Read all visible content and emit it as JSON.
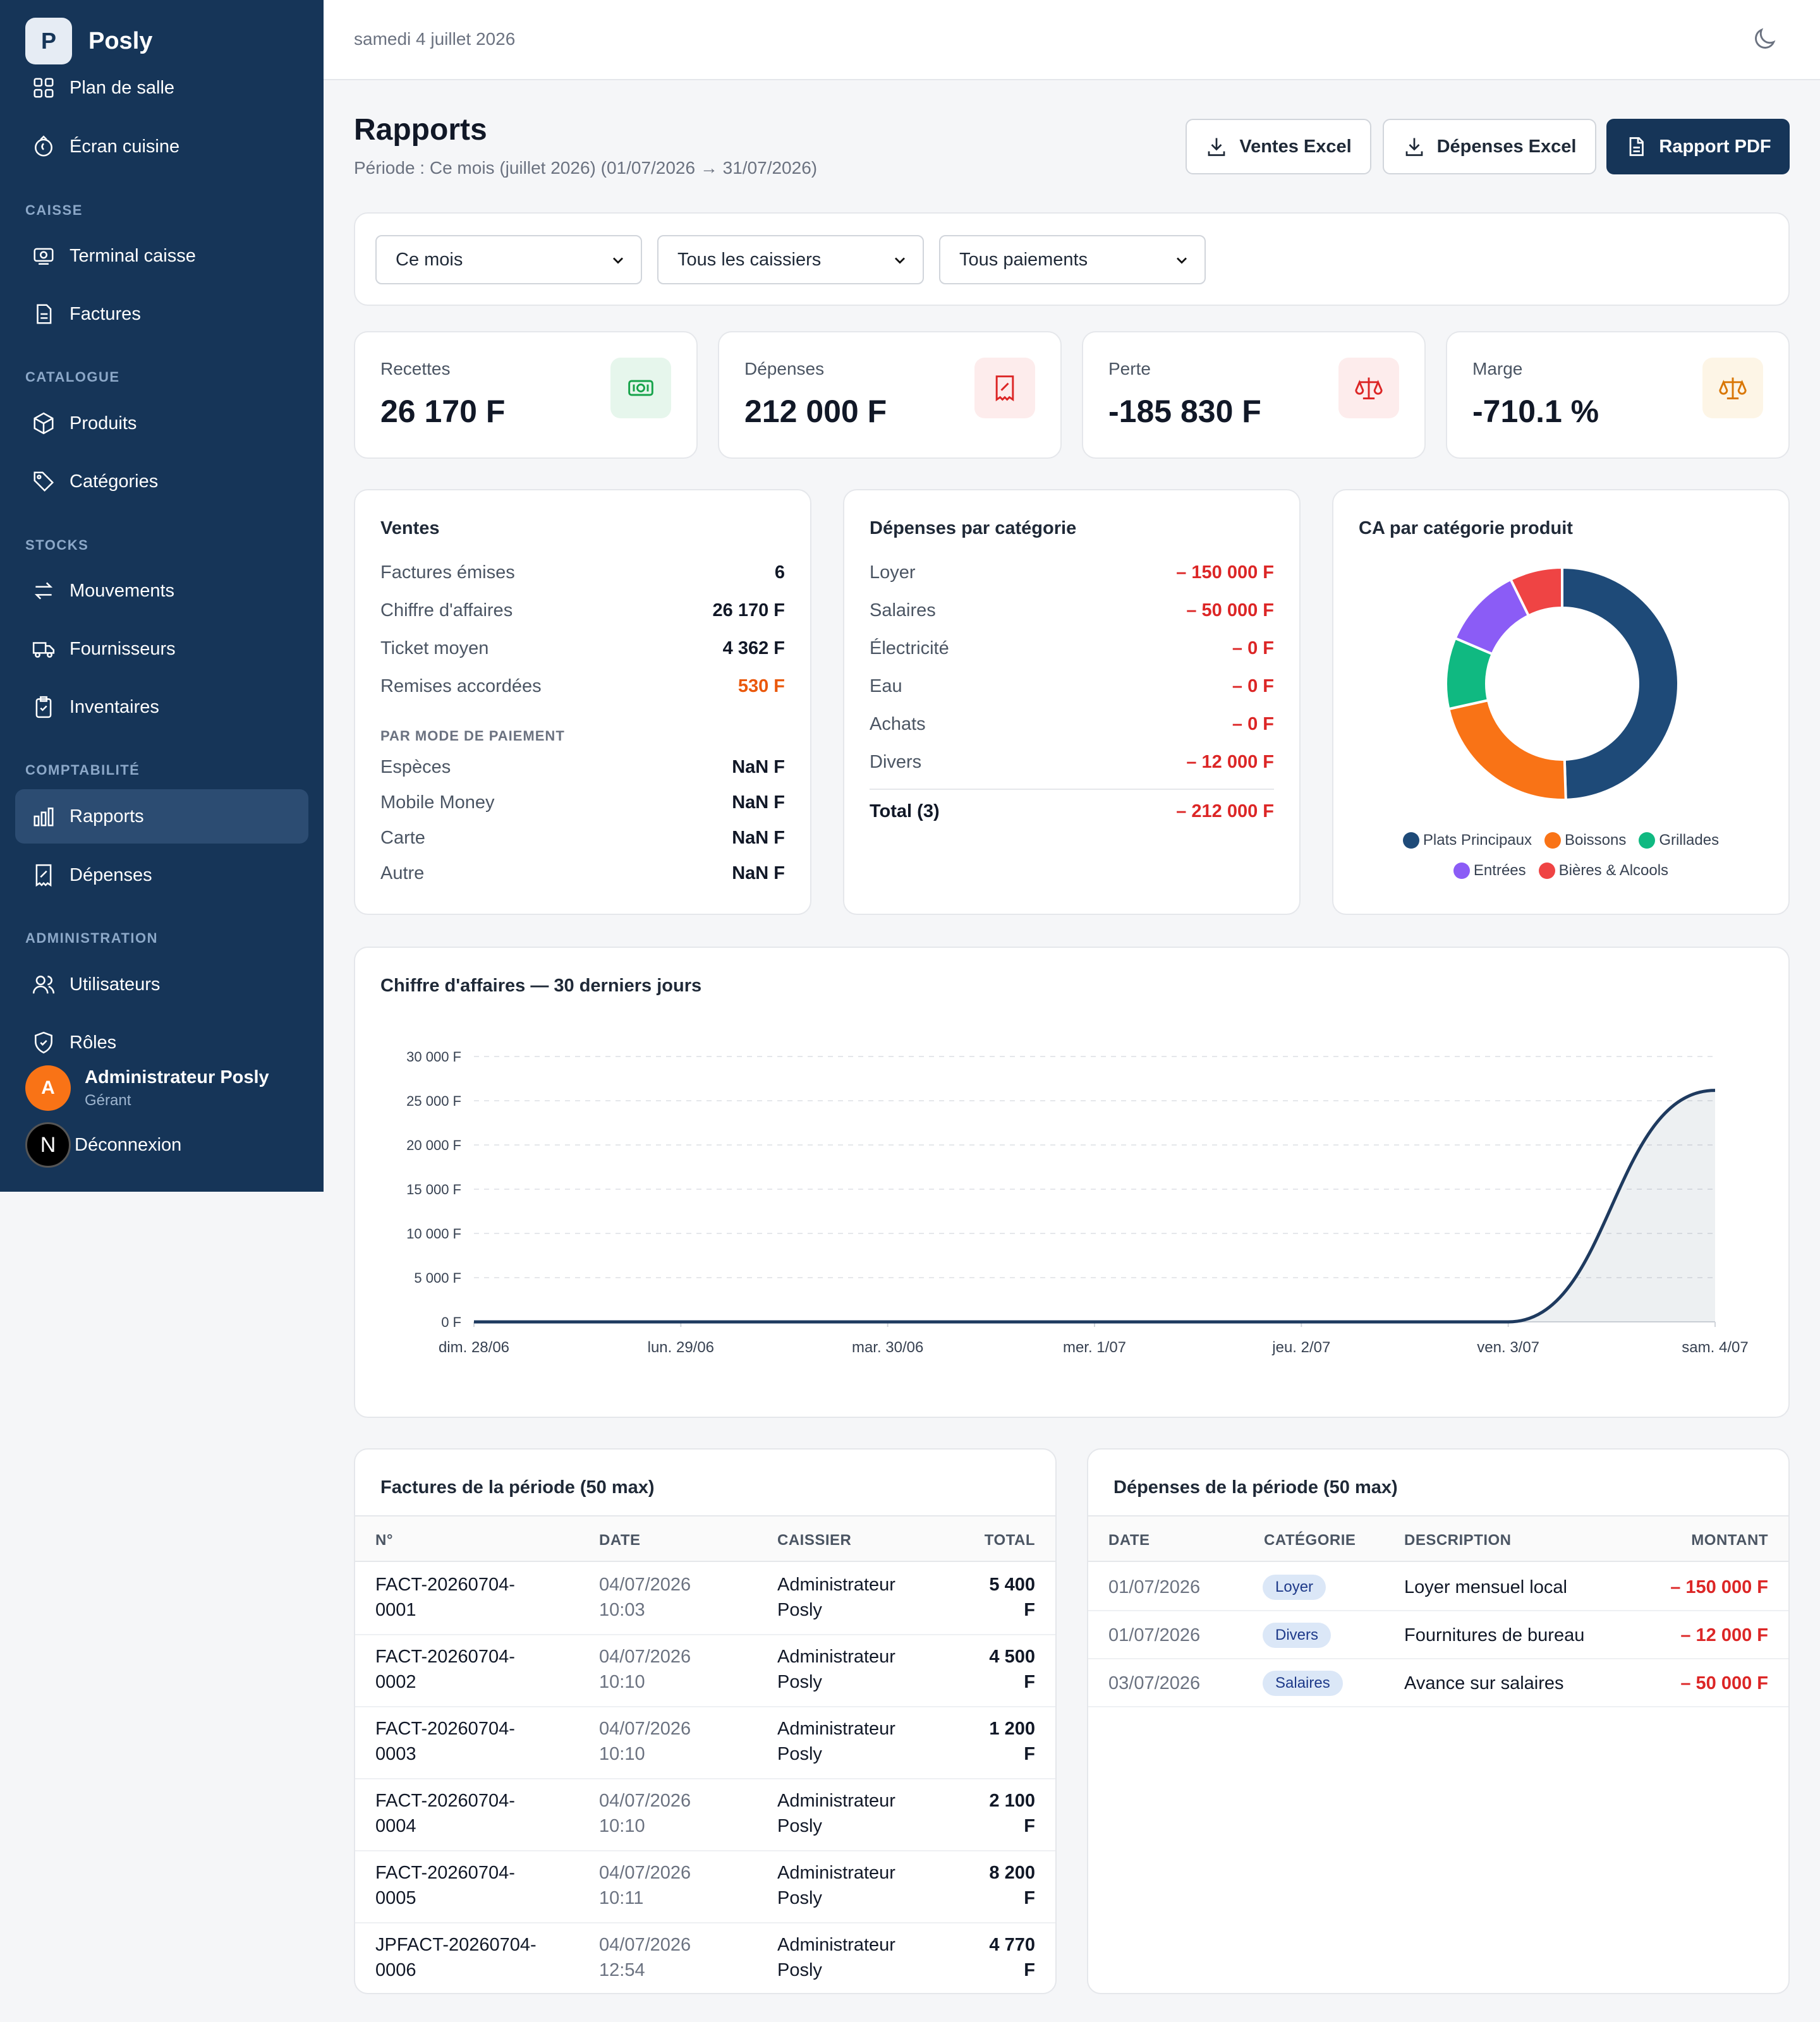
{
  "app": {
    "name": "Posly",
    "logo_letter": "P"
  },
  "sidebar": {
    "items_top": [
      {
        "label": "Plan de salle",
        "icon": "floor-plan-icon"
      },
      {
        "label": "Écran cuisine",
        "icon": "kitchen-icon"
      }
    ],
    "sections": [
      {
        "title": "CAISSE",
        "items": [
          {
            "label": "Terminal caisse",
            "icon": "cash-register-icon"
          },
          {
            "label": "Factures",
            "icon": "invoice-icon"
          }
        ]
      },
      {
        "title": "CATALOGUE",
        "items": [
          {
            "label": "Produits",
            "icon": "box-icon"
          },
          {
            "label": "Catégories",
            "icon": "tag-icon"
          }
        ]
      },
      {
        "title": "STOCKS",
        "items": [
          {
            "label": "Mouvements",
            "icon": "arrows-icon"
          },
          {
            "label": "Fournisseurs",
            "icon": "truck-icon"
          },
          {
            "label": "Inventaires",
            "icon": "clipboard-icon"
          }
        ]
      },
      {
        "title": "COMPTABILITÉ",
        "items": [
          {
            "label": "Rapports",
            "icon": "bar-chart-icon",
            "active": true
          },
          {
            "label": "Dépenses",
            "icon": "receipt-icon"
          }
        ]
      },
      {
        "title": "ADMINISTRATION",
        "items": [
          {
            "label": "Utilisateurs",
            "icon": "users-icon"
          },
          {
            "label": "Rôles",
            "icon": "shield-icon"
          }
        ]
      }
    ],
    "user": {
      "initial": "A",
      "name": "Administrateur Posly",
      "role": "Gérant"
    },
    "logout": {
      "badge": "N",
      "label": "Déconnexion"
    }
  },
  "topbar": {
    "date": "samedi 4 juillet 2026"
  },
  "header": {
    "title": "Rapports",
    "period": "Période : Ce mois (juillet 2026) (01/07/2026 → 31/07/2026)",
    "buttons": {
      "sales_excel": "Ventes Excel",
      "expenses_excel": "Dépenses Excel",
      "pdf": "Rapport PDF"
    }
  },
  "filters": {
    "period": "Ce mois",
    "cashier": "Tous les caissiers",
    "payment": "Tous paiements"
  },
  "kpis": [
    {
      "label": "Recettes",
      "value": "26 170 F",
      "icon": "money-icon",
      "color": "#16a34a"
    },
    {
      "label": "Dépenses",
      "value": "212 000 F",
      "icon": "receipt-icon",
      "color": "#dc2626"
    },
    {
      "label": "Perte",
      "value": "-185 830 F",
      "icon": "scale-icon",
      "color": "#dc2626"
    },
    {
      "label": "Marge",
      "value": "-710.1 %",
      "icon": "scale-icon",
      "color": "#d97706"
    }
  ],
  "sales": {
    "title": "Ventes",
    "rows": [
      {
        "label": "Factures émises",
        "value": "6"
      },
      {
        "label": "Chiffre d'affaires",
        "value": "26 170 F"
      },
      {
        "label": "Ticket moyen",
        "value": "4 362 F"
      },
      {
        "label": "Remises accordées",
        "value": "530 F"
      }
    ],
    "payment_header": "PAR MODE DE PAIEMENT",
    "payments": [
      {
        "label": "Espèces",
        "value": "NaN F"
      },
      {
        "label": "Mobile Money",
        "value": "NaN F"
      },
      {
        "label": "Carte",
        "value": "NaN F"
      },
      {
        "label": "Autre",
        "value": "NaN F"
      }
    ]
  },
  "expenses_by_cat": {
    "title": "Dépenses par catégorie",
    "rows": [
      {
        "label": "Loyer",
        "value": "– 150 000 F"
      },
      {
        "label": "Salaires",
        "value": "– 50 000 F"
      },
      {
        "label": "Électricité",
        "value": "– 0 F"
      },
      {
        "label": "Eau",
        "value": "– 0 F"
      },
      {
        "label": "Achats",
        "value": "– 0 F"
      },
      {
        "label": "Divers",
        "value": "– 12 000 F"
      }
    ],
    "total_label": "Total (3)",
    "total_value": "– 212 000 F"
  },
  "ca_by_category": {
    "title": "CA par catégorie produit",
    "chart_data": {
      "type": "pie",
      "categories": [
        "Plats Principaux",
        "Boissons",
        "Grillades",
        "Entrées",
        "Bières & Alcools"
      ],
      "values": [
        49.5,
        22.0,
        9.9,
        11.3,
        7.3
      ],
      "colors": [
        "#1e4a78",
        "#f97316",
        "#10b981",
        "#8b5cf6",
        "#ef4444"
      ],
      "legend": "bottom"
    }
  },
  "revenue_chart": {
    "title": "Chiffre d'affaires — 30 derniers jours",
    "chart_data": {
      "type": "area",
      "x": [
        "dim. 28/06",
        "lun. 29/06",
        "mar. 30/06",
        "mer. 1/07",
        "jeu. 2/07",
        "ven. 3/07",
        "sam. 4/07"
      ],
      "values": [
        0,
        0,
        0,
        0,
        0,
        0,
        26170
      ],
      "ylim": [
        0,
        30000
      ],
      "yticks": [
        "0 F",
        "5 000 F",
        "10 000 F",
        "15 000 F",
        "20 000 F",
        "25 000 F",
        "30 000 F"
      ],
      "grid": true,
      "color": "#1e3a5f"
    }
  },
  "invoices_table": {
    "title": "Factures de la période (50 max)",
    "columns": [
      "N°",
      "DATE",
      "CAISSIER",
      "TOTAL"
    ],
    "rows": [
      {
        "no": [
          "FACT-20260704-",
          "0001"
        ],
        "date": [
          "04/07/2026",
          "10:03"
        ],
        "cashier": [
          "Administrateur",
          "Posly"
        ],
        "total": [
          "5 400",
          "F"
        ]
      },
      {
        "no": [
          "FACT-20260704-",
          "0002"
        ],
        "date": [
          "04/07/2026",
          "10:10"
        ],
        "cashier": [
          "Administrateur",
          "Posly"
        ],
        "total": [
          "4 500",
          "F"
        ]
      },
      {
        "no": [
          "FACT-20260704-",
          "0003"
        ],
        "date": [
          "04/07/2026",
          "10:10"
        ],
        "cashier": [
          "Administrateur",
          "Posly"
        ],
        "total": [
          "1 200",
          "F"
        ]
      },
      {
        "no": [
          "FACT-20260704-",
          "0004"
        ],
        "date": [
          "04/07/2026",
          "10:10"
        ],
        "cashier": [
          "Administrateur",
          "Posly"
        ],
        "total": [
          "2 100",
          "F"
        ]
      },
      {
        "no": [
          "FACT-20260704-",
          "0005"
        ],
        "date": [
          "04/07/2026",
          "10:11"
        ],
        "cashier": [
          "Administrateur",
          "Posly"
        ],
        "total": [
          "8 200",
          "F"
        ]
      },
      {
        "no": [
          "JPFACT-20260704-",
          "0006"
        ],
        "date": [
          "04/07/2026",
          "12:54"
        ],
        "cashier": [
          "Administrateur",
          "Posly"
        ],
        "total": [
          "4 770",
          "F"
        ]
      }
    ]
  },
  "expenses_table": {
    "title": "Dépenses de la période (50 max)",
    "columns": [
      "DATE",
      "CATÉGORIE",
      "DESCRIPTION",
      "MONTANT"
    ],
    "rows": [
      {
        "date": "01/07/2026",
        "category": "Loyer",
        "description": "Loyer mensuel local",
        "amount": "– 150 000 F"
      },
      {
        "date": "01/07/2026",
        "category": "Divers",
        "description": "Fournitures de bureau",
        "amount": "– 12 000 F"
      },
      {
        "date": "03/07/2026",
        "category": "Salaires",
        "description": "Avance sur salaires",
        "amount": "– 50 000 F"
      }
    ]
  }
}
